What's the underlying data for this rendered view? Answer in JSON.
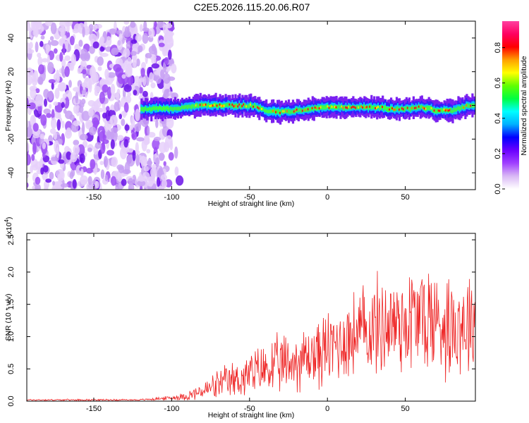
{
  "title": "C2E5.2026.115.20.06.R07",
  "chart_data": [
    {
      "type": "heatmap",
      "name": "spectrogram",
      "xlabel": "Height of straight line (km)",
      "ylabel": "Frequency (Hz)",
      "xlim": [
        -193,
        95
      ],
      "ylim": [
        -50,
        50
      ],
      "xticks": [
        -150,
        -100,
        -50,
        0,
        50
      ],
      "yticks": [
        -40,
        -20,
        0,
        20,
        40
      ],
      "noise_region_x": [
        -193,
        -100
      ],
      "signal_band_x": [
        -120,
        95
      ],
      "signal_ridge": {
        "x": [
          -120,
          -100,
          -80,
          -60,
          -50,
          -45,
          -40,
          -30,
          -20,
          -10,
          0,
          10,
          20,
          30,
          40,
          50,
          60,
          65,
          70,
          80,
          90,
          95
        ],
        "freq": [
          -2,
          -2,
          0,
          0,
          0,
          -1,
          -3,
          -4,
          -3,
          -2,
          -1,
          -1,
          -1,
          -1,
          -2,
          -2,
          -1,
          -2,
          -3,
          -3,
          0,
          0
        ]
      },
      "colorbar": {
        "label": "Normalized spectral amplitude",
        "range": [
          0.0,
          0.95
        ],
        "ticks": [
          0.0,
          0.2,
          0.4,
          0.6,
          0.8
        ],
        "tick_labels": [
          "0.0",
          "0.2",
          "0.4",
          "0.6",
          "0.8"
        ],
        "colors": [
          "#ffffff",
          "#d9b8f5",
          "#a040ff",
          "#6a00ff",
          "#0000ff",
          "#00b0ff",
          "#00ffff",
          "#00ff40",
          "#60ff00",
          "#ffff00",
          "#ffa000",
          "#ff0000",
          "#ff0060",
          "#ff40a0"
        ]
      }
    },
    {
      "type": "line",
      "name": "snr",
      "xlabel": "Height of straight line (km)",
      "ylabel": "SNR (10 * v/v)",
      "multiplier_label": "(x10",
      "multiplier_exp": "4",
      "xlim": [
        -193,
        95
      ],
      "ylim": [
        0,
        2.6
      ],
      "xticks": [
        -150,
        -100,
        -50,
        0,
        50
      ],
      "yticks": [
        0.0,
        0.5,
        1.0,
        1.5,
        2.0,
        2.5
      ],
      "ytick_labels": [
        "0.0",
        "0.5",
        "1.0",
        "1.5",
        "2.0",
        "2.5"
      ],
      "color": "#ee2222",
      "envelope_x": [
        -193,
        -120,
        -100,
        -90,
        -80,
        -70,
        -60,
        -50,
        -40,
        -30,
        -20,
        -10,
        0,
        10,
        20,
        30,
        40,
        50,
        60,
        70,
        80,
        90,
        95
      ],
      "envelope_mean": [
        0.02,
        0.02,
        0.05,
        0.08,
        0.15,
        0.25,
        0.32,
        0.4,
        0.5,
        0.55,
        0.62,
        0.7,
        0.8,
        0.95,
        1.05,
        1.15,
        1.2,
        1.25,
        1.3,
        1.25,
        1.2,
        1.25,
        1.3
      ],
      "envelope_spread": [
        0.01,
        0.01,
        0.03,
        0.06,
        0.12,
        0.2,
        0.25,
        0.3,
        0.35,
        0.4,
        0.4,
        0.45,
        0.5,
        0.55,
        0.6,
        0.65,
        0.7,
        0.75,
        0.8,
        0.75,
        0.7,
        0.7,
        0.7
      ]
    }
  ]
}
